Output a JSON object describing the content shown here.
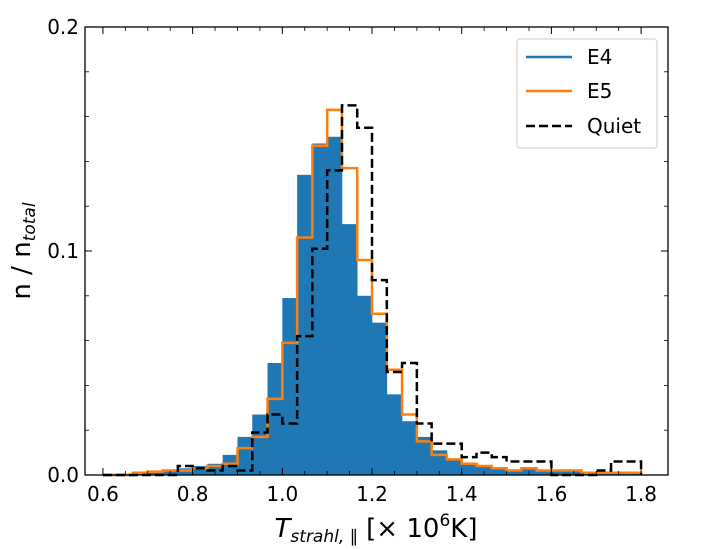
{
  "chart_data": {
    "type": "bar",
    "xlabel_main": "T",
    "xlabel_sub": "strahl, ∥",
    "xlabel_unit_pre": "[× 10",
    "xlabel_unit_exp": "6",
    "xlabel_unit_post": "K]",
    "ylabel_main": "n / n",
    "ylabel_sub": "total",
    "xlim": [
      0.56,
      1.86
    ],
    "ylim": [
      0,
      0.2
    ],
    "xticks": [
      0.6,
      0.8,
      1.0,
      1.2,
      1.4,
      1.6,
      1.8
    ],
    "xtick_labels": [
      "0.6",
      "0.8",
      "1.0",
      "1.2",
      "1.4",
      "1.6",
      "1.8"
    ],
    "yticks": [
      0.0,
      0.1,
      0.2
    ],
    "ytick_labels": [
      "0.0",
      "0.1",
      "0.2"
    ],
    "legend_position": "top-right",
    "bin_edges": [
      0.6,
      0.633,
      0.667,
      0.7,
      0.733,
      0.767,
      0.8,
      0.833,
      0.867,
      0.9,
      0.933,
      0.967,
      1.0,
      1.033,
      1.067,
      1.1,
      1.133,
      1.167,
      1.2,
      1.233,
      1.267,
      1.3,
      1.333,
      1.367,
      1.4,
      1.433,
      1.467,
      1.5,
      1.533,
      1.567,
      1.6,
      1.633,
      1.667,
      1.7,
      1.733,
      1.767,
      1.8
    ],
    "series": [
      {
        "name": "E4",
        "style": "filled",
        "color": "#1f77b4",
        "values": [
          0.0005,
          0.0005,
          0.001,
          0.001,
          0.002,
          0.003,
          0.004,
          0.005,
          0.009,
          0.017,
          0.027,
          0.05,
          0.079,
          0.134,
          0.148,
          0.151,
          0.112,
          0.08,
          0.068,
          0.036,
          0.024,
          0.017,
          0.011,
          0.007,
          0.005,
          0.004,
          0.003,
          0.002,
          0.0025,
          0.002,
          0.002,
          0.0025,
          0.001,
          0.001,
          0.001,
          0.001
        ]
      },
      {
        "name": "E5",
        "style": "step",
        "color": "#ff7f0e",
        "values": [
          0.0,
          0.0,
          0.001,
          0.0015,
          0.002,
          0.002,
          0.003,
          0.004,
          0.005,
          0.012,
          0.017,
          0.034,
          0.059,
          0.106,
          0.147,
          0.163,
          0.137,
          0.096,
          0.072,
          0.047,
          0.027,
          0.015,
          0.009,
          0.007,
          0.005,
          0.004,
          0.003,
          0.002,
          0.003,
          0.002,
          0.002,
          0.002,
          0.001,
          0.001,
          0.001,
          0.001
        ]
      },
      {
        "name": "Quiet",
        "style": "dashed-step",
        "color": "#000000",
        "values": [
          0.0,
          0.0,
          0.0,
          0.0,
          0.0,
          0.004,
          0.003,
          0.002,
          0.004,
          0.002,
          0.019,
          0.027,
          0.023,
          0.062,
          0.101,
          0.136,
          0.165,
          0.155,
          0.087,
          0.046,
          0.05,
          0.023,
          0.014,
          0.014,
          0.008,
          0.01,
          0.008,
          0.006,
          0.006,
          0.006,
          0.0,
          0.0,
          0.0,
          0.002,
          0.006,
          0.006
        ]
      }
    ]
  }
}
